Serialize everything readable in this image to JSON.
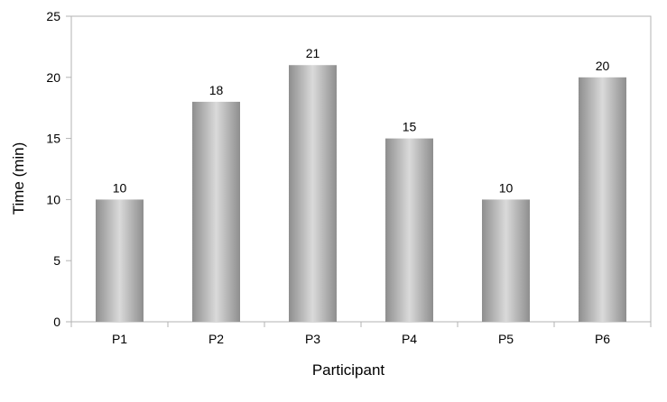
{
  "chart_data": {
    "type": "bar",
    "categories": [
      "P1",
      "P2",
      "P3",
      "P4",
      "P5",
      "P6"
    ],
    "values": [
      10,
      18,
      21,
      15,
      10,
      20
    ],
    "title": "",
    "xlabel": "Participant",
    "ylabel": "Time (min)",
    "ylim": [
      0,
      25
    ],
    "yticks": [
      0,
      5,
      10,
      15,
      20,
      25
    ],
    "grid": false,
    "legend": "none",
    "bar_color_edge": "#8c8c8c",
    "bar_color_highlight": "#dcdcdc",
    "axis_color": "#b3b3b3"
  }
}
